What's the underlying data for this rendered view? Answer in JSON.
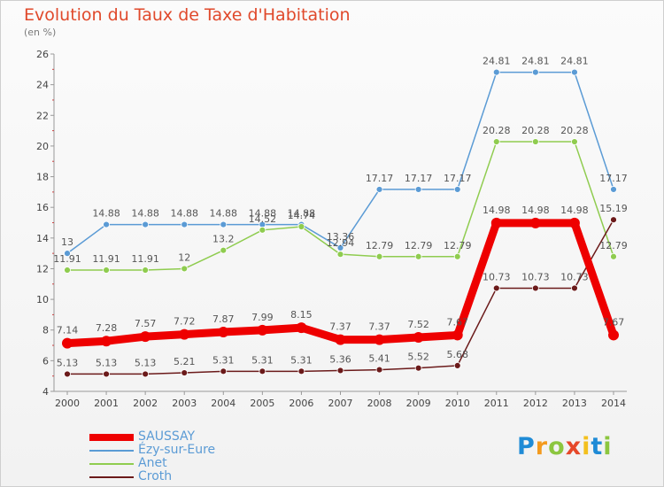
{
  "title": "Evolution du Taux de Taxe d'Habitation",
  "subtitle": "(en %)",
  "chart_data": {
    "type": "line",
    "x": [
      "2000",
      "2001",
      "2002",
      "2003",
      "2004",
      "2005",
      "2006",
      "2007",
      "2008",
      "2009",
      "2010",
      "2011",
      "2012",
      "2013",
      "2014"
    ],
    "ylim": [
      4,
      26
    ],
    "yticks": [
      "4",
      "6",
      "8",
      "10",
      "12",
      "14",
      "16",
      "18",
      "20",
      "22",
      "24",
      "26"
    ],
    "grid": false,
    "legend_position": "bottom-left",
    "series": [
      {
        "name": "SAUSSAY",
        "color": "#ee0000",
        "values": [
          7.14,
          7.28,
          7.57,
          7.72,
          7.87,
          7.99,
          8.15,
          7.37,
          7.37,
          7.52,
          7.67,
          14.98,
          14.98,
          14.98,
          7.67
        ],
        "labels": [
          "7.14",
          "7.28",
          "7.57",
          "7.72",
          "7.87",
          "7.99",
          "8.15",
          "7.37",
          "7.37",
          "7.52",
          "7.67",
          "14.98",
          "14.98",
          "14.98",
          "7.67"
        ]
      },
      {
        "name": "Ézy-sur-Eure",
        "color": "#5b9bd5",
        "values": [
          13,
          14.88,
          14.88,
          14.88,
          14.88,
          14.88,
          14.88,
          13.36,
          17.17,
          17.17,
          17.17,
          24.81,
          24.81,
          24.81,
          17.17
        ],
        "labels": [
          "13",
          "14.88",
          "14.88",
          "14.88",
          "14.88",
          "14.88",
          "14.88",
          "13.36",
          "17.17",
          "17.17",
          "17.17",
          "24.81",
          "24.81",
          "24.81",
          "17.17"
        ]
      },
      {
        "name": "Anet",
        "color": "#8fcc4f",
        "values": [
          11.91,
          11.91,
          11.91,
          12,
          13.2,
          14.52,
          14.74,
          12.94,
          12.79,
          12.79,
          12.79,
          20.28,
          20.28,
          20.28,
          12.79
        ],
        "labels": [
          "11.91",
          "11.91",
          "11.91",
          "12",
          "13.2",
          "14.52",
          "14.74",
          "12.94",
          "12.79",
          "12.79",
          "12.79",
          "20.28",
          "20.28",
          "20.28",
          "12.79"
        ]
      },
      {
        "name": "Croth",
        "color": "#6b1a1a",
        "values": [
          5.13,
          5.13,
          5.13,
          5.21,
          5.31,
          5.31,
          5.31,
          5.36,
          5.41,
          5.52,
          5.68,
          10.73,
          10.73,
          10.73,
          15.19
        ],
        "labels": [
          "5.13",
          "5.13",
          "5.13",
          "5.21",
          "5.31",
          "5.31",
          "5.31",
          "5.36",
          "5.41",
          "5.52",
          "5.68",
          "10.73",
          "10.73",
          "10.73",
          "15.19"
        ]
      }
    ]
  },
  "legend": {
    "items": [
      {
        "label": "SAUSSAY",
        "color": "#ee0000"
      },
      {
        "label": "Ézy-sur-Eure",
        "color": "#5b9bd5"
      },
      {
        "label": "Anet",
        "color": "#8fcc4f"
      },
      {
        "label": "Croth",
        "color": "#6b1a1a"
      }
    ]
  },
  "logo": {
    "text": "Proxiti"
  }
}
